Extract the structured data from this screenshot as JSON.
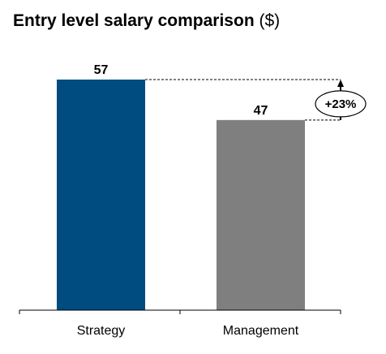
{
  "chart_data": {
    "type": "bar",
    "title": "Entry level salary comparison",
    "title_unit": "($)",
    "categories": [
      "Strategy",
      "Management"
    ],
    "values": [
      57,
      47
    ],
    "value_labels": [
      "57",
      "47"
    ],
    "colors": [
      "#004b80",
      "#7f7f7f"
    ],
    "ylim": [
      0,
      57
    ],
    "grid": false,
    "legend": "none",
    "annotation": {
      "label": "+23%",
      "from_category": "Management",
      "to_category": "Strategy"
    }
  }
}
